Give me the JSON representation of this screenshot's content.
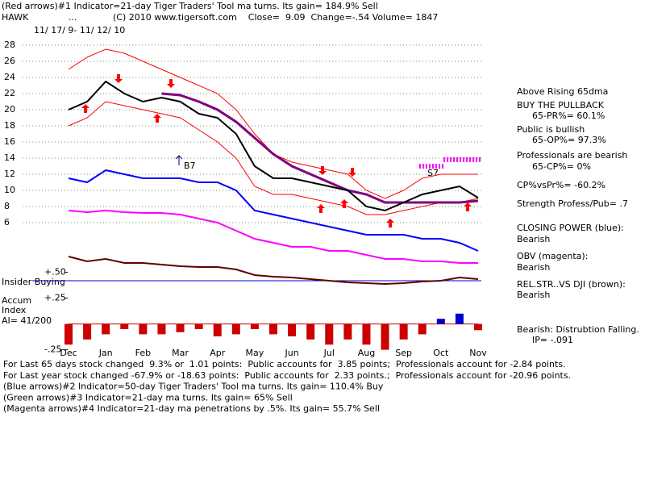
{
  "header": {
    "line1": "(Red arrows)#1 Indicator=21-day Tiger Traders' Tool ma turns. Its gain= 184.9% Sell",
    "symbol": "HAWK",
    "dots": "...",
    "line2": "(C) 2010 www.tigersoft.com    Close=  9.09  Change=-.54 Volume= 1847",
    "date_range": "11/ 17/ 9- 11/ 12/ 10"
  },
  "labels": {
    "b7": "B7",
    "s7": "S7",
    "insider": "Insider Buying",
    "accum1": "Accum",
    "accum2": "Index",
    "ai": "AI= 41/200"
  },
  "right_panel": [
    "Above Rising 65dma",
    "BUY THE PULLBACK",
    "65-PR%= 60.1%",
    "Public is bullish",
    "65-OP%= 97.3%",
    "Professionals are bearish",
    "65-CP%= 0%",
    "CP%vsPr%= -60.2%",
    "Strength Profess/Pub= .7",
    "CLOSING POWER (blue):",
    "Bearish",
    "OBV (magenta):",
    "Bearish",
    "REL.STR..VS DJI (brown):",
    "Bearish",
    "Bearish: Distrubtion Falling.",
    "IP= -.091"
  ],
  "footer": [
    "For Last 65 days stock changed  9.3% or  1.01 points:  Public accounts for  3.85 points;  Professionals account for -2.84 points.",
    "For Last year stock changed -67.9% or -18.63 points:  Public accounts for  2.33 points.;  Professionals account for -20.96 points.",
    "(Blue arrows)#2 Indicator=50-day Tiger Traders' Tool ma turns. Its gain= 110.4% Buy",
    "(Green arrows)#3 Indicator=21-day ma turns. Its gain= 65% Sell",
    "(Magenta arrows)#4 Indicator=21-day ma penetrations by .5%. Its gain= 55.7% Sell"
  ],
  "chart_data": {
    "type": "line",
    "categories": [
      "Dec",
      null,
      "Jan",
      null,
      "Feb",
      null,
      "Mar",
      null,
      "Apr",
      null,
      "May",
      null,
      "Jun",
      null,
      "Jul",
      null,
      "Aug",
      null,
      "Sep",
      null,
      "Oct",
      null,
      "Nov"
    ],
    "ylim": [
      -2,
      30
    ],
    "yticks": [
      6,
      8,
      10,
      12,
      14,
      16,
      18,
      20,
      22,
      24,
      26,
      28
    ],
    "grid": true,
    "y2lim": [
      -0.3,
      0.55
    ],
    "y2ticks": [
      {
        "value": 0.5,
        "label": "+.50"
      },
      {
        "value": 0.25,
        "label": "+.25"
      },
      {
        "value": -0.25,
        "label": "-.25"
      }
    ],
    "series": [
      {
        "color": "#ff0000",
        "width": 1,
        "values": [
          25,
          26.5,
          27.5,
          27,
          26,
          25,
          24,
          23,
          22,
          20,
          17,
          14.5,
          13.5,
          13,
          12.5,
          12,
          10,
          9,
          10,
          11.5,
          12,
          12,
          12
        ]
      },
      {
        "color": "#ff0000",
        "width": 1,
        "values": [
          18,
          19,
          21,
          20.5,
          20,
          19.5,
          19,
          17.5,
          16,
          14,
          10.5,
          9.5,
          9.5,
          9,
          8.5,
          8,
          7,
          7,
          7.5,
          8,
          8.5,
          8.5,
          9
        ]
      },
      {
        "color": "#800080",
        "width": 3,
        "values": [
          null,
          null,
          null,
          null,
          null,
          22,
          21.8,
          21,
          20,
          18.5,
          16.5,
          14.5,
          13,
          12,
          11,
          10,
          9.5,
          8.5,
          8.5,
          8.5,
          8.5,
          8.5,
          8.7
        ]
      },
      {
        "color": "#000000",
        "width": 2,
        "values": [
          20,
          21,
          23.5,
          22,
          21,
          21.5,
          21,
          19.5,
          19,
          17,
          13,
          11.5,
          11.5,
          11,
          10.5,
          10,
          8,
          7.5,
          8.5,
          9.5,
          10,
          10.5,
          9.09
        ]
      },
      {
        "color": "#0000ff",
        "width": 2,
        "values": [
          11.5,
          11,
          12.5,
          12,
          11.5,
          11.5,
          11.5,
          11,
          11,
          10,
          7.5,
          7,
          6.5,
          6,
          5.5,
          5,
          4.5,
          4.5,
          4.5,
          4,
          4,
          3.5,
          2.5
        ]
      },
      {
        "color": "#ff00ff",
        "width": 2,
        "values": [
          7.5,
          7.3,
          7.5,
          7.3,
          7.2,
          7.2,
          7,
          6.5,
          6,
          5,
          4,
          3.5,
          3,
          3,
          2.5,
          2.5,
          2,
          1.5,
          1.5,
          1.2,
          1.2,
          1,
          1
        ]
      },
      {
        "color": "#600000",
        "width": 2,
        "values": [
          1.8,
          1.2,
          1.5,
          1,
          1,
          0.8,
          0.6,
          0.5,
          0.5,
          0.2,
          -0.5,
          -0.7,
          -0.8,
          -1,
          -1.2,
          -1.4,
          -1.5,
          -1.6,
          -1.5,
          -1.3,
          -1.2,
          -0.8,
          -1
        ]
      },
      {
        "type": "bar",
        "axis": "y2",
        "color": "#cc0000",
        "positive_color": "#0000cc",
        "values": [
          -0.2,
          -0.15,
          -0.1,
          -0.05,
          -0.1,
          -0.1,
          -0.08,
          -0.05,
          -0.12,
          -0.1,
          -0.05,
          -0.1,
          -0.12,
          -0.15,
          -0.2,
          -0.15,
          -0.2,
          -0.25,
          -0.15,
          -0.1,
          0.05,
          0.1,
          -0.06
        ]
      }
    ]
  }
}
